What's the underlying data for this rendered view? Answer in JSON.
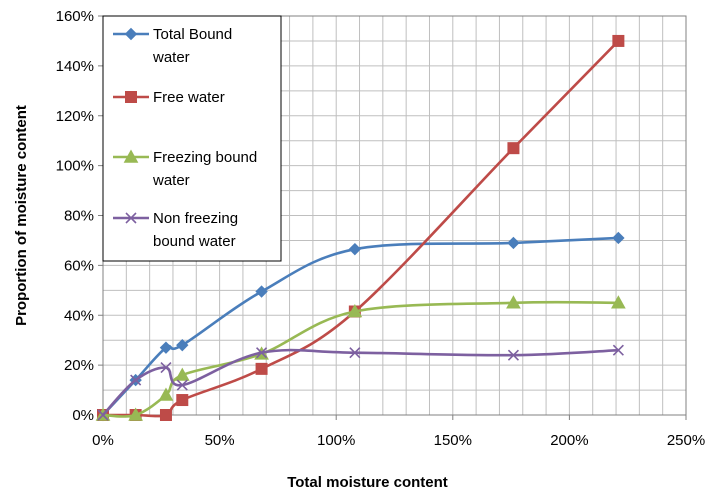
{
  "chart_data": {
    "type": "line",
    "xlabel": "Total moisture content",
    "ylabel": "Proportion of moisture content",
    "xlim": [
      0,
      2.5
    ],
    "ylim": [
      0,
      1.6
    ],
    "x_ticks": [
      0,
      0.5,
      1.0,
      1.5,
      2.0,
      2.5
    ],
    "x_tick_labels": [
      "0%",
      "50%",
      "100%",
      "150%",
      "200%",
      "250%"
    ],
    "y_ticks": [
      0,
      0.2,
      0.4,
      0.6,
      0.8,
      1.0,
      1.2,
      1.4,
      1.6
    ],
    "y_tick_labels": [
      "0%",
      "20%",
      "40%",
      "60%",
      "80%",
      "100%",
      "120%",
      "140%",
      "160%"
    ],
    "x_minor_step": 0.1,
    "y_minor_step": 0.1,
    "grid": true,
    "legend_position": "top-left",
    "series": [
      {
        "name": "Total Bound water",
        "name_lines": [
          "Total Bound",
          "water"
        ],
        "marker": "diamond",
        "color": "#4a7ebb",
        "x": [
          0.0,
          0.14,
          0.27,
          0.34,
          0.68,
          1.08,
          1.76,
          2.21
        ],
        "y": [
          0.0,
          0.14,
          0.27,
          0.28,
          0.495,
          0.665,
          0.69,
          0.71
        ]
      },
      {
        "name": "Free water",
        "name_lines": [
          "Free water"
        ],
        "marker": "square",
        "color": "#be4b48",
        "x": [
          0.0,
          0.14,
          0.27,
          0.34,
          0.68,
          1.08,
          1.76,
          2.21
        ],
        "y": [
          0.0,
          0.0,
          0.0,
          0.06,
          0.185,
          0.415,
          1.07,
          1.5
        ]
      },
      {
        "name": "Freezing bound water",
        "name_lines": [
          "Freezing bound",
          "water"
        ],
        "marker": "triangle",
        "color": "#98b954",
        "x": [
          0.0,
          0.14,
          0.27,
          0.34,
          0.68,
          1.08,
          1.76,
          2.21
        ],
        "y": [
          0.0,
          0.0,
          0.08,
          0.16,
          0.245,
          0.415,
          0.45,
          0.45
        ]
      },
      {
        "name": "Non freezing bound water",
        "name_lines": [
          "Non freezing",
          "bound water"
        ],
        "marker": "x",
        "color": "#7d60a0",
        "x": [
          0.0,
          0.14,
          0.27,
          0.34,
          0.68,
          1.08,
          1.76,
          2.21
        ],
        "y": [
          0.0,
          0.14,
          0.19,
          0.12,
          0.25,
          0.25,
          0.24,
          0.26
        ]
      }
    ]
  }
}
